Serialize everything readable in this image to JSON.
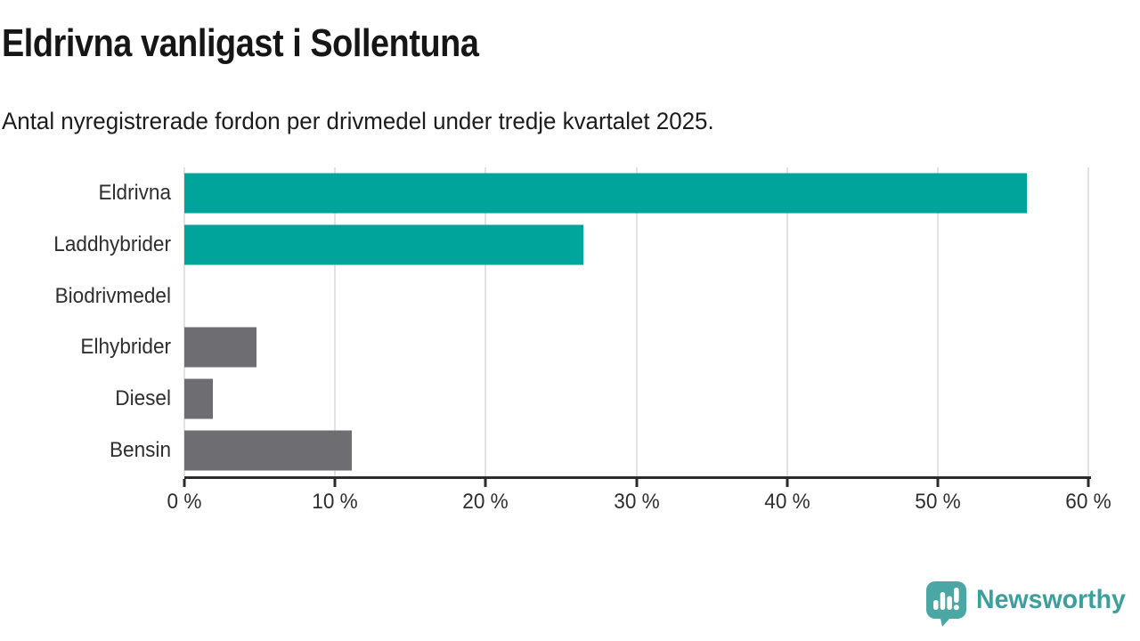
{
  "title": "Eldrivna vanligast i Sollentuna",
  "subtitle": "Antal nyregistrerade fordon per drivmedel under tredje kvartalet 2025.",
  "chart_data": {
    "type": "bar",
    "orientation": "horizontal",
    "title": "Eldrivna vanligast i Sollentuna",
    "subtitle": "Antal nyregistrerade fordon per drivmedel under tredje kvartalet 2025.",
    "categories": [
      "Eldrivna",
      "Laddhybrider",
      "Biodrivmedel",
      "Elhybrider",
      "Diesel",
      "Bensin"
    ],
    "values": [
      55.9,
      26.5,
      0,
      4.8,
      1.9,
      11.1
    ],
    "unit": "%",
    "xlim": [
      0,
      60
    ],
    "x_ticks": [
      0,
      10,
      20,
      30,
      40,
      50,
      60
    ],
    "x_tick_labels": [
      "0 %",
      "10 %",
      "20 %",
      "30 %",
      "40 %",
      "50 %",
      "60 %"
    ],
    "bar_colors": [
      "#00a49b",
      "#00a49b",
      "#00a49b",
      "#6e6e72",
      "#6e6e72",
      "#6e6e72"
    ],
    "grid": "vertical-gridlines-on",
    "legend": "none"
  },
  "colors": {
    "teal_bar": "#00a49b",
    "gray_bar": "#6e6e72",
    "gridline": "#e2e2e2",
    "axis": "#2b2b2b",
    "label_text": "#2e2e2e",
    "title_text": "#161616",
    "logo_teal": "#4ba7a3",
    "logo_text_teal": "#3c9f9b"
  },
  "footer": {
    "brand": "Newsworthy",
    "logo_icon": "speech-bubble-bar-chart-exclamation"
  }
}
